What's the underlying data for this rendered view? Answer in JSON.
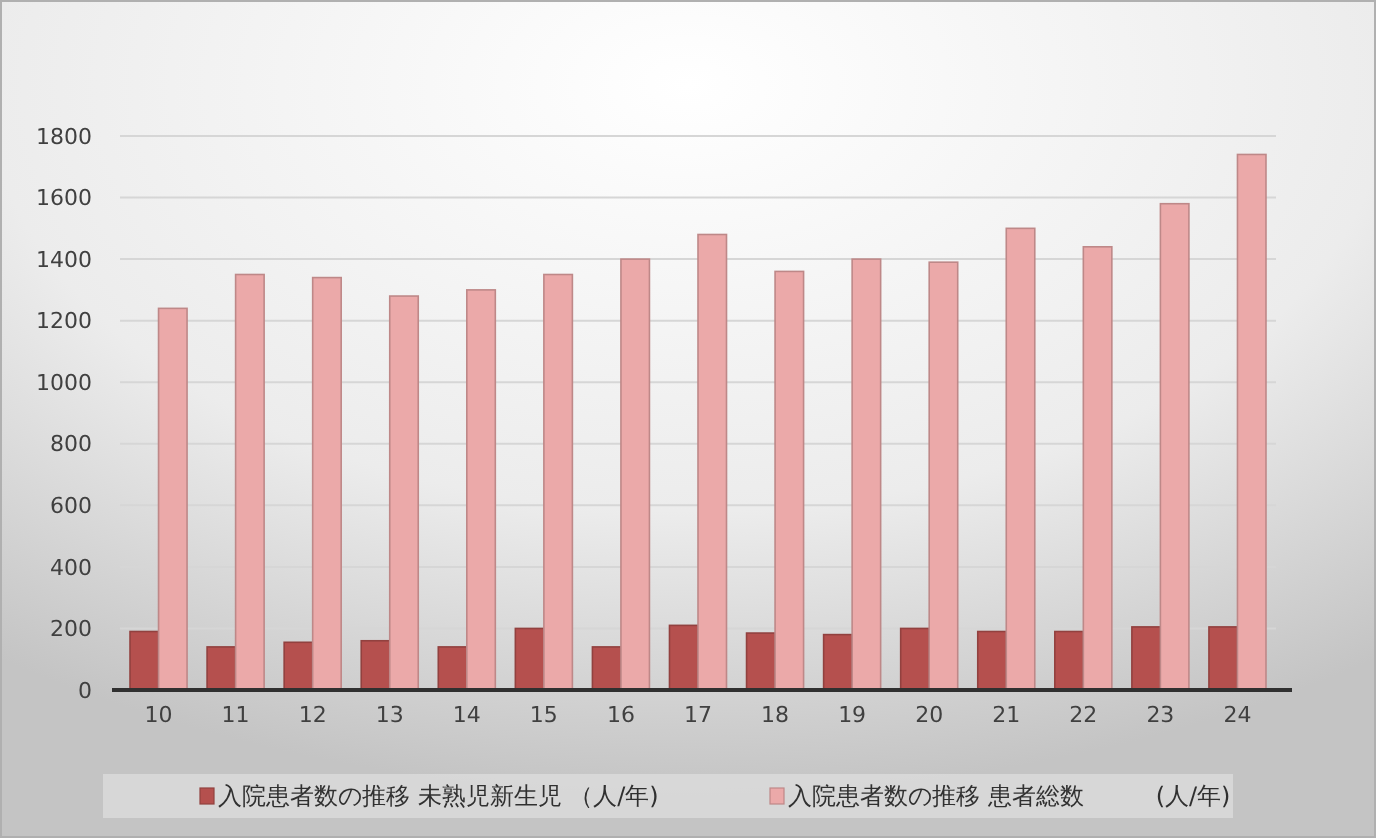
{
  "chart_data": {
    "type": "bar",
    "categories": [
      "10",
      "11",
      "12",
      "13",
      "14",
      "15",
      "16",
      "17",
      "18",
      "19",
      "20",
      "21",
      "22",
      "23",
      "24"
    ],
    "series": [
      {
        "name": "入院患者数の推移 未熟児新生児 （人/年)",
        "color": "#b5504e",
        "values": [
          190,
          140,
          155,
          160,
          140,
          200,
          140,
          210,
          185,
          180,
          200,
          190,
          190,
          205,
          205
        ]
      },
      {
        "name": "入院患者数の推移 患者総数　　　(人/年)",
        "color": "#eba9a9",
        "values": [
          1240,
          1350,
          1340,
          1280,
          1300,
          1350,
          1400,
          1480,
          1360,
          1400,
          1390,
          1500,
          1440,
          1580,
          1740
        ]
      }
    ],
    "ylim": [
      0,
      1800
    ],
    "yticks": [
      0,
      200,
      400,
      600,
      800,
      1000,
      1200,
      1400,
      1600,
      1800
    ],
    "grid": "y",
    "legend": "bottom"
  }
}
